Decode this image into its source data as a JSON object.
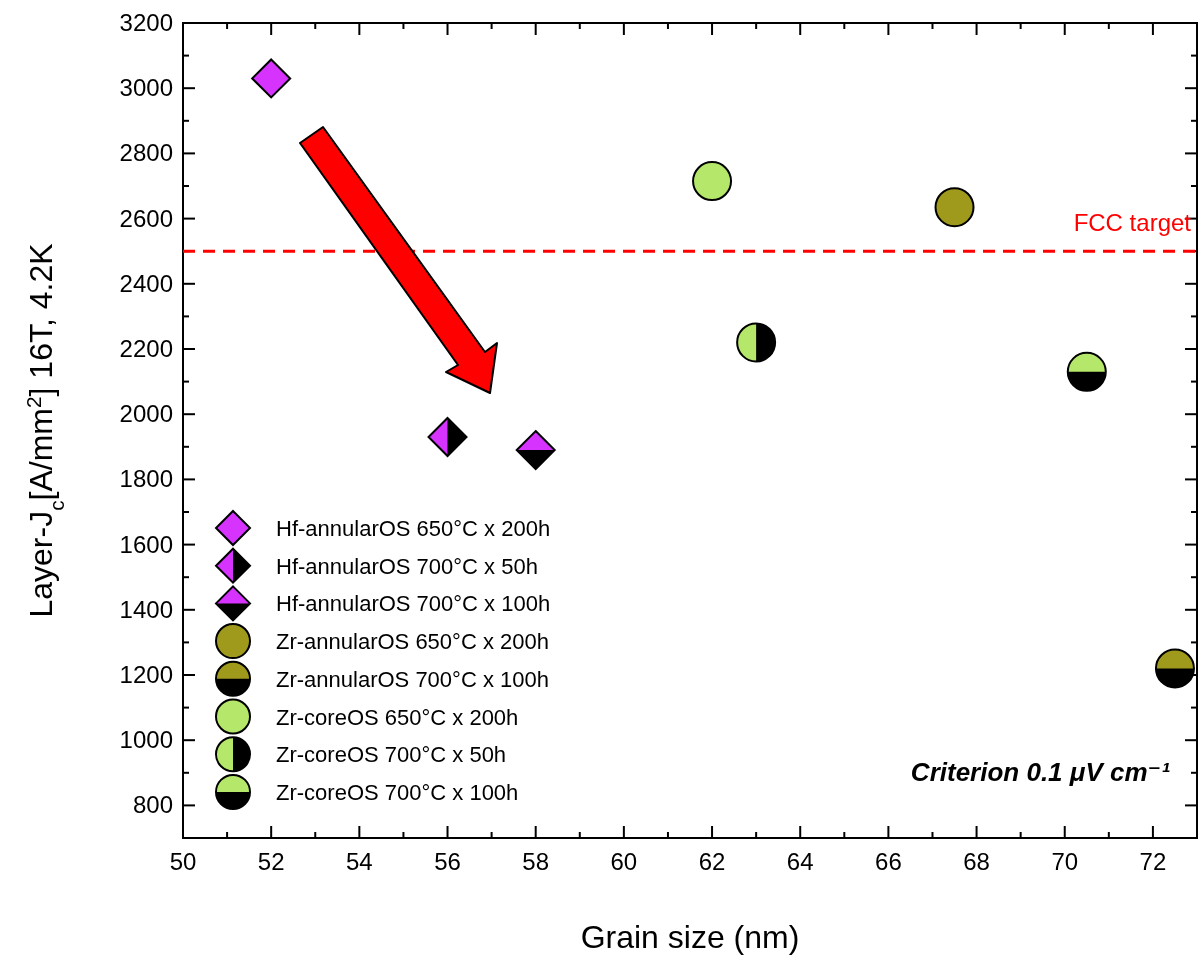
{
  "chart_data": {
    "type": "scatter",
    "xlabel": "Grain size (nm)",
    "ylabel": "Layer-J$_{c}$[A/mm$^{2}$] 16T, 4.2K",
    "xlim": [
      50,
      73
    ],
    "xticks": [
      50,
      52,
      54,
      56,
      58,
      60,
      62,
      64,
      66,
      68,
      70,
      72
    ],
    "ylim": [
      700,
      3200
    ],
    "yticks": [
      800,
      1000,
      1200,
      1400,
      1600,
      1800,
      2000,
      2200,
      2400,
      2600,
      2800,
      3000,
      3200
    ],
    "grid": false,
    "legend": "bottom left",
    "series": [
      {
        "name": "Hf-annularOS 650°C x 200h",
        "color": "#d633ff",
        "marker": "diamond",
        "x": [
          52
        ],
        "values": [
          3030
        ]
      },
      {
        "name": "Hf-annularOS 700°C x 50h",
        "color": "#d633ff",
        "marker": "diamond",
        "x": [
          56
        ],
        "values": [
          1930
        ]
      },
      {
        "name": "Hf-annularOS 700°C x 100h",
        "color": "#d633ff",
        "marker": "diamond",
        "x": [
          58
        ],
        "values": [
          1890
        ]
      },
      {
        "name": "Zr-annularOS 650°C x 200h",
        "color": "#a09a1c",
        "marker": "circle",
        "x": [
          67.5
        ],
        "values": [
          2635
        ]
      },
      {
        "name": "Zr-annularOS 700°C x 100h",
        "color": "#a09a1c",
        "marker": "circle",
        "x": [
          72.5
        ],
        "values": [
          1220
        ]
      },
      {
        "name": "Zr-coreOS 650°C x 200h",
        "color": "#b5e86a",
        "marker": "circle",
        "x": [
          62
        ],
        "values": [
          2715
        ]
      },
      {
        "name": "Zr-coreOS 700°C x 50h",
        "color": "#b5e86a",
        "marker": "circle",
        "x": [
          63
        ],
        "values": [
          2220
        ]
      },
      {
        "name": "Zr-coreOS 700°C x 100h",
        "color": "#b5e86a",
        "marker": "circle",
        "x": [
          70.5
        ],
        "values": [
          2130
        ]
      }
    ],
    "ref_lines": [
      {
        "axis": "y",
        "value": 2500,
        "label": "FCC target",
        "color": "#ff0000",
        "line_style": "dashed"
      }
    ],
    "annotations": [
      "Criterion 0.1 μV cm⁻¹"
    ]
  }
}
